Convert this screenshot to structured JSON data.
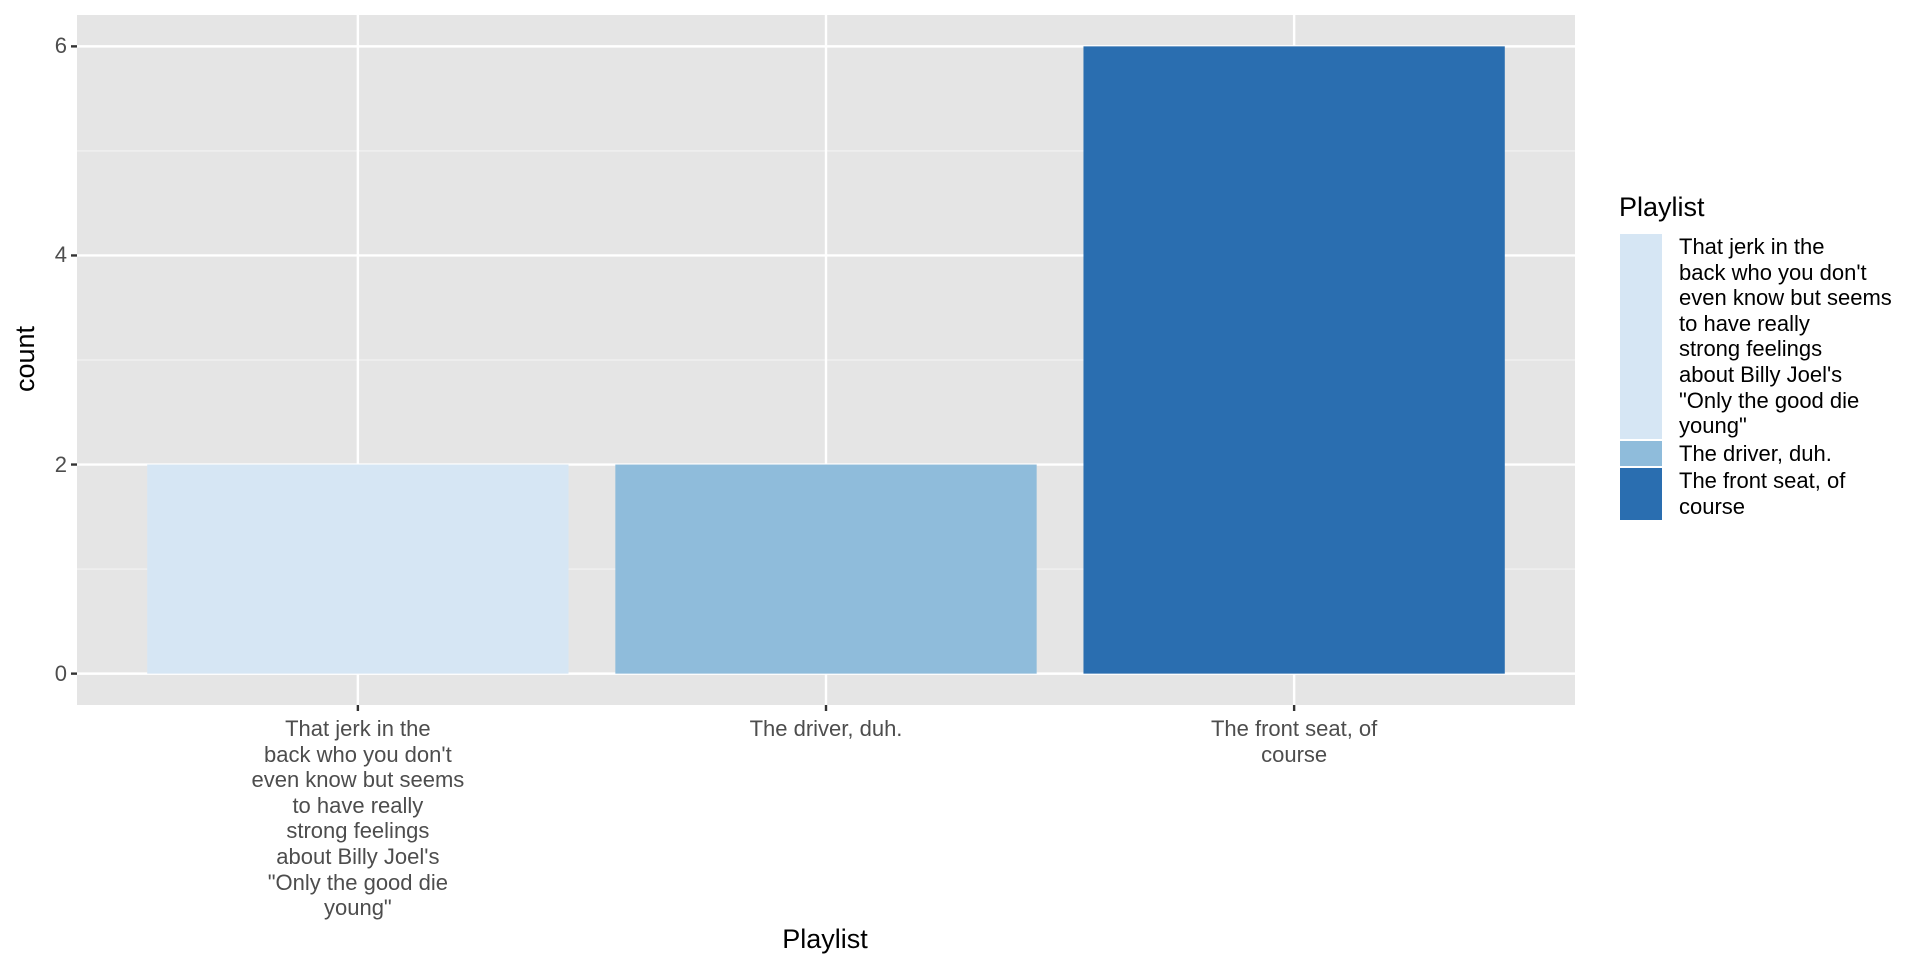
{
  "chart_data": {
    "type": "bar",
    "x_label": "Playlist",
    "y_label": "count",
    "legend_title": "Playlist",
    "categories": [
      "That jerk in the\nback who you don't\neven know but seems\nto have really\nstrong feelings\nabout Billy Joel's\n\"Only the good die\nyoung\"",
      "The driver, duh.",
      "The front seat, of\ncourse"
    ],
    "values": [
      2,
      2,
      6
    ],
    "colors": [
      "#d6e6f4",
      "#8fbcdb",
      "#2a6eb0"
    ],
    "ylim": [
      -0.3,
      6.3
    ],
    "yticks": [
      0,
      2,
      4,
      6
    ],
    "grid": true,
    "legend": "right"
  }
}
